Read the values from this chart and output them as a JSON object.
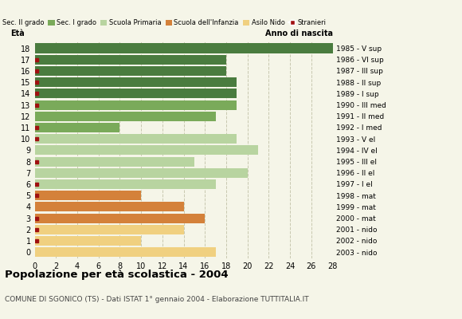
{
  "ages": [
    18,
    17,
    16,
    15,
    14,
    13,
    12,
    11,
    10,
    9,
    8,
    7,
    6,
    5,
    4,
    3,
    2,
    1,
    0
  ],
  "values": [
    28,
    18,
    18,
    19,
    19,
    19,
    17,
    8,
    19,
    21,
    15,
    20,
    17,
    10,
    14,
    16,
    14,
    10,
    17
  ],
  "years": [
    "1985 - V sup",
    "1986 - VI sup",
    "1987 - III sup",
    "1988 - II sup",
    "1989 - I sup",
    "1990 - III med",
    "1991 - II med",
    "1992 - I med",
    "1993 - V el",
    "1994 - IV el",
    "1995 - III el",
    "1996 - II el",
    "1997 - I el",
    "1998 - mat",
    "1999 - mat",
    "2000 - mat",
    "2001 - nido",
    "2002 - nido",
    "2003 - nido"
  ],
  "bar_colors": [
    "#4a7c3f",
    "#4a7c3f",
    "#4a7c3f",
    "#4a7c3f",
    "#4a7c3f",
    "#7aaa5a",
    "#7aaa5a",
    "#7aaa5a",
    "#b8d4a0",
    "#b8d4a0",
    "#b8d4a0",
    "#b8d4a0",
    "#b8d4a0",
    "#d4813a",
    "#d4813a",
    "#d4813a",
    "#f0d080",
    "#f0d080",
    "#f0d080"
  ],
  "has_stranieri": [
    false,
    true,
    true,
    true,
    true,
    true,
    false,
    true,
    true,
    false,
    true,
    false,
    true,
    true,
    false,
    true,
    true,
    true,
    false
  ],
  "stranieri_color": "#a01010",
  "background_color": "#f5f5e8",
  "grid_color": "#c8c8b0",
  "title": "Popolazione per età scolastica - 2004",
  "subtitle": "COMUNE DI SGONICO (TS) - Dati ISTAT 1° gennaio 2004 - Elaborazione TUTTITALIA.IT",
  "xlim": [
    0,
    28
  ],
  "xticks": [
    0,
    2,
    4,
    6,
    8,
    10,
    12,
    14,
    16,
    18,
    20,
    22,
    24,
    26,
    28
  ],
  "legend_labels": [
    "Sec. II grado",
    "Sec. I grado",
    "Scuola Primaria",
    "Scuola dell'Infanzia",
    "Asilo Nido",
    "Stranieri"
  ],
  "legend_colors": [
    "#4a7c3f",
    "#7aaa5a",
    "#b8d4a0",
    "#d4813a",
    "#f0d080",
    "#a01010"
  ]
}
